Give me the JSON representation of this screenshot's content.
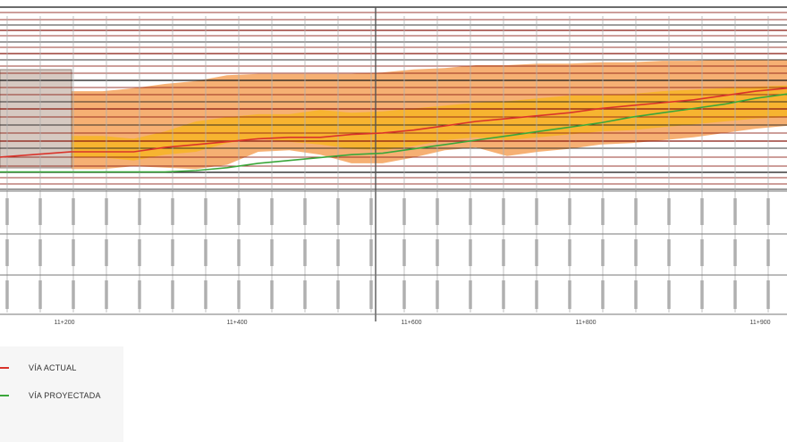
{
  "colors": {
    "actual_line": "#d9332b",
    "projected_line": "#3aa63a",
    "band_outer": "#f4a25a",
    "band_inner": "#f7b42c",
    "reference_lines": "#8a1c12",
    "grid": "#b0b0b0",
    "hatch_box": "#c9b7ad"
  },
  "legend": {
    "actual": {
      "label": "VÍA ACTUAL",
      "icon": "red-line-icon"
    },
    "projected": {
      "label": "VÍA PROYECTADA",
      "icon": "green-line-icon"
    }
  },
  "chainage_labels": [
    "11+200",
    "11+400",
    "11+600",
    "11+800",
    "11+900"
  ],
  "chart_data": {
    "type": "line",
    "x": [
      0,
      1,
      2,
      3,
      4,
      5,
      6,
      7,
      8,
      9,
      10,
      11,
      12,
      13,
      14,
      15,
      16,
      17,
      18,
      19,
      20,
      21,
      22,
      23
    ],
    "series": [
      {
        "name": "VÍA ACTUAL",
        "values": [
          2.6,
          2.6,
          2.6,
          2.9,
          3.1,
          3.3,
          3.5,
          3.6,
          3.6,
          3.8,
          3.9,
          4.1,
          4.4,
          4.7,
          4.9,
          5.1,
          5.3,
          5.6,
          5.8,
          6.0,
          6.2,
          6.5,
          6.8,
          7.0
        ]
      },
      {
        "name": "VÍA PROYECTADA",
        "values": [
          1.2,
          1.2,
          1.2,
          1.2,
          1.3,
          1.5,
          1.8,
          2.0,
          2.2,
          2.4,
          2.5,
          2.8,
          3.1,
          3.4,
          3.7,
          4.0,
          4.3,
          4.6,
          5.0,
          5.3,
          5.6,
          5.9,
          6.3,
          6.6
        ]
      }
    ],
    "band_outer": {
      "upper": [
        6.8,
        6.8,
        7.0,
        7.3,
        7.5,
        7.9,
        8.0,
        8.0,
        8.0,
        8.0,
        8.1,
        8.3,
        8.4,
        8.6,
        8.6,
        8.7,
        8.7,
        8.8,
        8.8,
        8.9,
        8.9,
        9.0,
        9.0,
        9.0
      ],
      "lower": [
        1.4,
        1.4,
        1.6,
        1.5,
        1.4,
        1.7,
        2.6,
        2.7,
        2.4,
        1.8,
        1.8,
        2.2,
        2.7,
        2.9,
        2.3,
        2.6,
        2.8,
        3.1,
        3.2,
        3.4,
        3.6,
        3.9,
        4.2,
        4.4
      ]
    },
    "band_inner": {
      "upper": [
        3.7,
        3.7,
        3.5,
        4.0,
        4.7,
        5.0,
        5.2,
        5.2,
        5.5,
        5.3,
        5.4,
        5.6,
        5.8,
        6.0,
        6.1,
        6.3,
        6.5,
        6.5,
        6.6,
        6.8,
        6.9,
        7.0,
        7.1,
        7.2
      ],
      "lower": [
        2.2,
        2.2,
        2.0,
        2.4,
        2.6,
        3.2,
        3.5,
        3.3,
        3.1,
        2.8,
        2.7,
        3.0,
        3.4,
        3.6,
        3.4,
        3.6,
        3.8,
        4.0,
        4.1,
        4.3,
        4.5,
        4.7,
        4.9,
        5.0
      ]
    },
    "ylim": [
      0,
      12
    ],
    "grid": true
  }
}
